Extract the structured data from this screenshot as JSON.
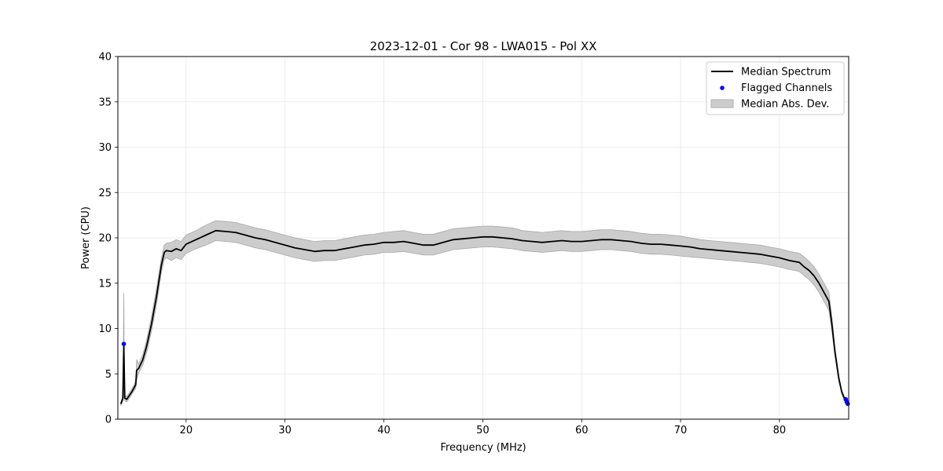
{
  "chart_data": {
    "type": "line",
    "title": "2023-12-01 - Cor 98 - LWA015 - Pol XX",
    "xlabel": "Frequency (MHz)",
    "ylabel": "Power (CPU)",
    "xlim": [
      13.1,
      87.0
    ],
    "ylim": [
      0,
      40
    ],
    "grid": true,
    "legend_position": "top-right",
    "x_ticks": [
      20,
      30,
      40,
      50,
      60,
      70,
      80
    ],
    "y_ticks": [
      0,
      5,
      10,
      15,
      20,
      25,
      30,
      35,
      40
    ],
    "series": [
      {
        "name": "Median Spectrum",
        "color": "#000000",
        "x": [
          13.4,
          13.6,
          13.7,
          13.75,
          13.8,
          14.0,
          14.5,
          14.9,
          15.0,
          15.2,
          15.6,
          16.0,
          16.5,
          17.0,
          17.5,
          17.8,
          18.0,
          18.5,
          19.0,
          19.5,
          20.0,
          21.0,
          22.0,
          23.0,
          24.0,
          25.0,
          26.0,
          27.0,
          28.0,
          29.0,
          30.0,
          31.0,
          32.0,
          33.0,
          34.0,
          35.0,
          36.0,
          37.0,
          38.0,
          39.0,
          40.0,
          41.0,
          42.0,
          43.0,
          44.0,
          45.0,
          46.0,
          47.0,
          48.0,
          49.0,
          50.0,
          51.0,
          52.0,
          53.0,
          54.0,
          55.0,
          56.0,
          57.0,
          58.0,
          59.0,
          60.0,
          61.0,
          62.0,
          63.0,
          64.0,
          65.0,
          66.0,
          67.0,
          68.0,
          69.0,
          70.0,
          71.0,
          72.0,
          73.0,
          74.0,
          75.0,
          76.0,
          77.0,
          78.0,
          79.0,
          80.0,
          81.0,
          82.0,
          82.5,
          83.0,
          83.5,
          84.0,
          84.5,
          85.0,
          85.3,
          85.6,
          86.0,
          86.3,
          86.6,
          86.9
        ],
        "y": [
          1.7,
          2.3,
          8.2,
          5.0,
          2.3,
          2.2,
          3.0,
          3.8,
          5.4,
          5.6,
          6.5,
          8.0,
          10.5,
          13.5,
          17.0,
          18.4,
          18.6,
          18.5,
          18.8,
          18.6,
          19.3,
          19.8,
          20.3,
          20.8,
          20.7,
          20.6,
          20.3,
          20.0,
          19.8,
          19.5,
          19.2,
          18.9,
          18.7,
          18.5,
          18.6,
          18.6,
          18.8,
          19.0,
          19.2,
          19.3,
          19.5,
          19.5,
          19.6,
          19.4,
          19.2,
          19.2,
          19.5,
          19.8,
          19.9,
          20.0,
          20.1,
          20.1,
          20.0,
          19.9,
          19.7,
          19.6,
          19.5,
          19.6,
          19.7,
          19.6,
          19.6,
          19.7,
          19.8,
          19.8,
          19.7,
          19.6,
          19.4,
          19.3,
          19.3,
          19.2,
          19.1,
          19.0,
          18.8,
          18.7,
          18.6,
          18.5,
          18.4,
          18.3,
          18.2,
          18.0,
          17.8,
          17.5,
          17.3,
          16.8,
          16.4,
          15.8,
          15.0,
          14.0,
          13.0,
          10.5,
          7.5,
          4.5,
          3.0,
          2.2,
          1.8
        ]
      },
      {
        "name": "Flagged Channels",
        "color": "#0000ff",
        "x": [
          13.7,
          86.7,
          86.8,
          86.9
        ],
        "y": [
          8.3,
          2.2,
          1.9,
          1.7
        ]
      },
      {
        "name": "Median Abs. Dev.",
        "color": "#cccccc",
        "x": [
          13.4,
          13.6,
          13.7,
          13.75,
          13.8,
          14.0,
          14.5,
          14.9,
          15.0,
          15.2,
          15.6,
          16.0,
          16.5,
          17.0,
          17.5,
          17.8,
          18.0,
          18.5,
          19.0,
          19.5,
          20.0,
          21.0,
          22.0,
          23.0,
          24.0,
          25.0,
          26.0,
          27.0,
          28.0,
          29.0,
          30.0,
          31.0,
          32.0,
          33.0,
          34.0,
          35.0,
          36.0,
          37.0,
          38.0,
          39.0,
          40.0,
          41.0,
          42.0,
          43.0,
          44.0,
          45.0,
          46.0,
          47.0,
          48.0,
          49.0,
          50.0,
          51.0,
          52.0,
          53.0,
          54.0,
          55.0,
          56.0,
          57.0,
          58.0,
          59.0,
          60.0,
          61.0,
          62.0,
          63.0,
          64.0,
          65.0,
          66.0,
          67.0,
          68.0,
          69.0,
          70.0,
          71.0,
          72.0,
          73.0,
          74.0,
          75.0,
          76.0,
          77.0,
          78.0,
          79.0,
          80.0,
          81.0,
          82.0,
          82.5,
          83.0,
          83.5,
          84.0,
          84.5,
          85.0,
          85.3,
          85.6,
          86.0,
          86.3,
          86.6,
          86.9
        ],
        "y_upper": [
          1.9,
          2.6,
          13.9,
          5.6,
          2.6,
          2.5,
          3.3,
          4.2,
          6.6,
          6.1,
          7.1,
          8.7,
          11.3,
          14.4,
          17.8,
          19.2,
          19.4,
          19.5,
          19.8,
          19.6,
          20.3,
          20.8,
          21.4,
          21.9,
          21.8,
          21.7,
          21.4,
          21.1,
          20.9,
          20.6,
          20.3,
          20.0,
          19.8,
          19.6,
          19.7,
          19.7,
          19.9,
          20.1,
          20.3,
          20.4,
          20.6,
          20.7,
          20.8,
          20.6,
          20.4,
          20.4,
          20.7,
          21.0,
          21.1,
          21.2,
          21.3,
          21.3,
          21.2,
          21.1,
          20.8,
          20.7,
          20.6,
          20.7,
          20.8,
          20.7,
          20.7,
          20.8,
          20.9,
          20.9,
          20.8,
          20.7,
          20.5,
          20.4,
          20.4,
          20.3,
          20.2,
          20.0,
          19.8,
          19.7,
          19.6,
          19.5,
          19.4,
          19.3,
          19.2,
          19.0,
          18.8,
          18.5,
          18.3,
          17.9,
          17.4,
          16.8,
          16.0,
          15.0,
          14.0,
          11.3,
          8.0,
          4.8,
          3.2,
          2.4,
          2.0
        ],
        "y_lower": [
          1.5,
          2.0,
          2.5,
          4.4,
          2.0,
          1.9,
          2.7,
          3.4,
          4.3,
          5.1,
          5.9,
          7.3,
          9.7,
          12.6,
          16.2,
          17.6,
          17.8,
          17.5,
          17.8,
          17.6,
          18.3,
          18.8,
          19.2,
          19.7,
          19.6,
          19.5,
          19.2,
          18.9,
          18.7,
          18.4,
          18.1,
          17.8,
          17.6,
          17.4,
          17.5,
          17.5,
          17.7,
          17.9,
          18.1,
          18.2,
          18.4,
          18.4,
          18.5,
          18.3,
          18.1,
          18.1,
          18.4,
          18.7,
          18.8,
          18.9,
          19.0,
          19.0,
          18.9,
          18.8,
          18.6,
          18.5,
          18.4,
          18.5,
          18.6,
          18.5,
          18.5,
          18.6,
          18.7,
          18.7,
          18.6,
          18.5,
          18.3,
          18.2,
          18.2,
          18.1,
          18.0,
          17.9,
          17.8,
          17.7,
          17.6,
          17.5,
          17.4,
          17.3,
          17.2,
          17.0,
          16.8,
          16.5,
          16.3,
          15.8,
          15.4,
          14.8,
          14.0,
          13.0,
          12.0,
          9.7,
          7.0,
          4.2,
          2.8,
          2.0,
          1.6
        ]
      }
    ]
  }
}
